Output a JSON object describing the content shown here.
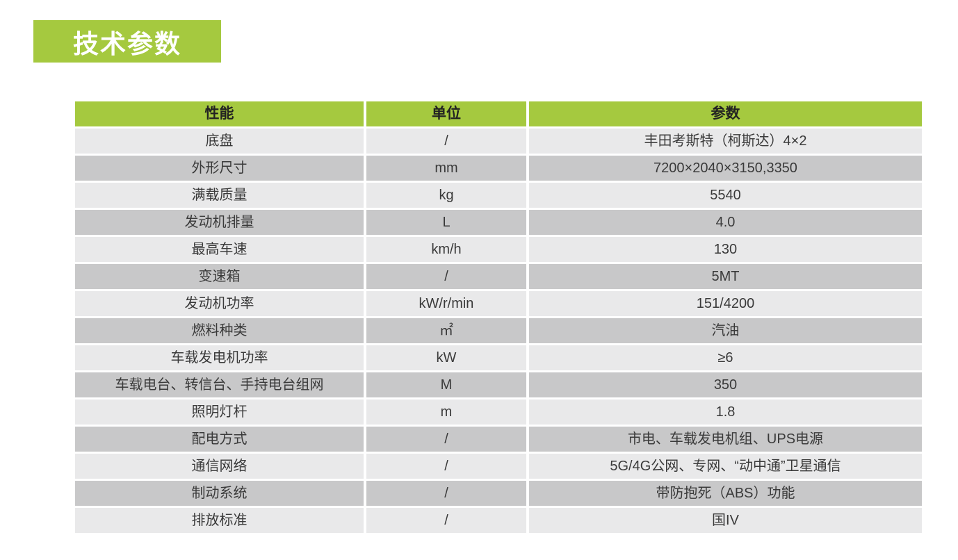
{
  "page": {
    "title_badge": "技术参数"
  },
  "table": {
    "headers": [
      "性能",
      "单位",
      "参数"
    ],
    "rows": [
      {
        "name": "底盘",
        "unit": "/",
        "value": "丰田考斯特（柯斯达）4×2"
      },
      {
        "name": "外形尺寸",
        "unit": "mm",
        "value": "7200×2040×3150,3350"
      },
      {
        "name": "满载质量",
        "unit": "kg",
        "value": "5540"
      },
      {
        "name": "发动机排量",
        "unit": "L",
        "value": "4.0"
      },
      {
        "name": "最高车速",
        "unit": "km/h",
        "value": "130"
      },
      {
        "name": "变速箱",
        "unit": "/",
        "value": "5MT"
      },
      {
        "name": "发动机功率",
        "unit": "kW/r/min",
        "value": "151/4200"
      },
      {
        "name": "燃料种类",
        "unit": "㎡",
        "value": "汽油"
      },
      {
        "name": "车载发电机功率",
        "unit": "kW",
        "value": "≥6"
      },
      {
        "name": "车载电台、转信台、手持电台组网",
        "unit": "M",
        "value": "350"
      },
      {
        "name": "照明灯杆",
        "unit": "m",
        "value": "1.8"
      },
      {
        "name": "配电方式",
        "unit": "/",
        "value": "市电、车载发电机组、UPS电源"
      },
      {
        "name": "通信网络",
        "unit": "/",
        "value": "5G/4G公网、专网、“动中通”卫星通信"
      },
      {
        "name": "制动系统",
        "unit": "/",
        "value": "带防抱死（ABS）功能"
      },
      {
        "name": "排放标准",
        "unit": "/",
        "value": "国IV"
      }
    ]
  },
  "colors": {
    "accent_green": "#a5c93f",
    "row_light": "#e9e9ea",
    "row_dark": "#c8c8c9",
    "header_text": "#222222",
    "cell_text": "#3a3a3a",
    "badge_text": "#ffffff"
  }
}
